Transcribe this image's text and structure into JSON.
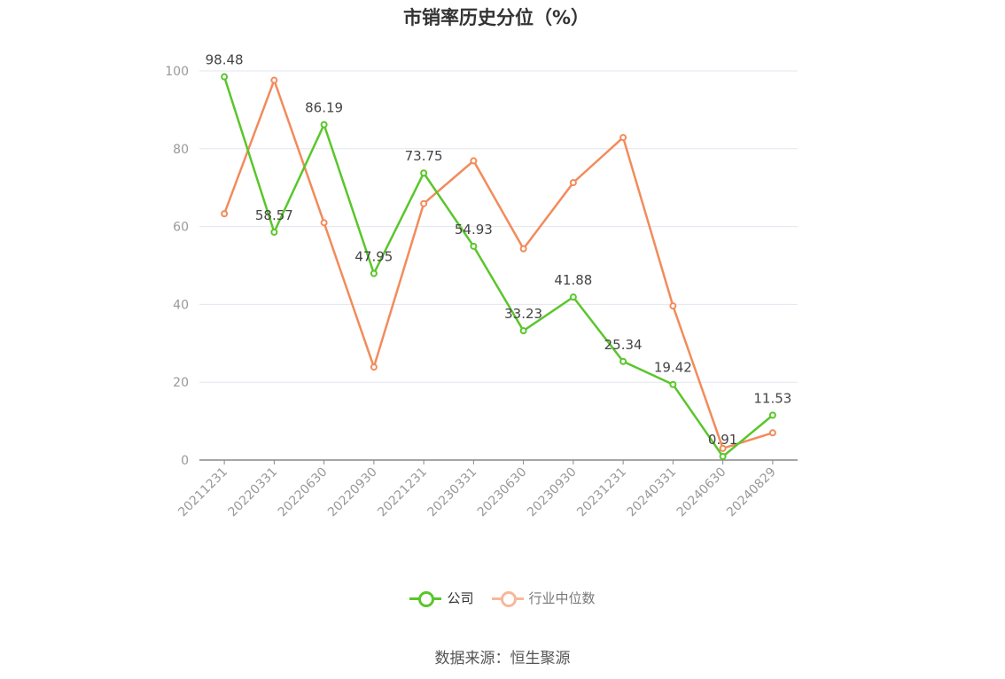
{
  "chart_data": {
    "type": "line",
    "title": "市销率历史分位（%）",
    "categories": [
      "20211231",
      "20220331",
      "20220630",
      "20220930",
      "20221231",
      "20230331",
      "20230630",
      "20230930",
      "20231231",
      "20240331",
      "20240630",
      "20240829"
    ],
    "ylim": [
      0,
      100
    ],
    "yticks": [
      "0",
      "20",
      "40",
      "60",
      "80",
      "100"
    ],
    "grid": true,
    "legend_position": "bottom",
    "series": [
      {
        "name": "公司",
        "color": "#5ac62b",
        "values": [
          98.48,
          58.57,
          86.19,
          47.95,
          73.75,
          54.93,
          33.23,
          41.88,
          25.34,
          19.42,
          0.91,
          11.53
        ],
        "labels": [
          "98.48",
          "58.57",
          "86.19",
          "47.95",
          "73.75",
          "54.93",
          "33.23",
          "41.88",
          "25.34",
          "19.42",
          "0.91",
          "11.53"
        ]
      },
      {
        "name": "行业中位数",
        "color": "#f28b5b",
        "values": [
          63.3,
          97.6,
          61.0,
          23.9,
          65.9,
          76.9,
          54.3,
          71.3,
          82.9,
          39.6,
          3.0,
          7.0
        ]
      }
    ]
  },
  "legend": {
    "company": "公司",
    "industry": "行业中位数",
    "industry_color": "#f7b79c"
  },
  "source": "数据来源：恒生聚源"
}
